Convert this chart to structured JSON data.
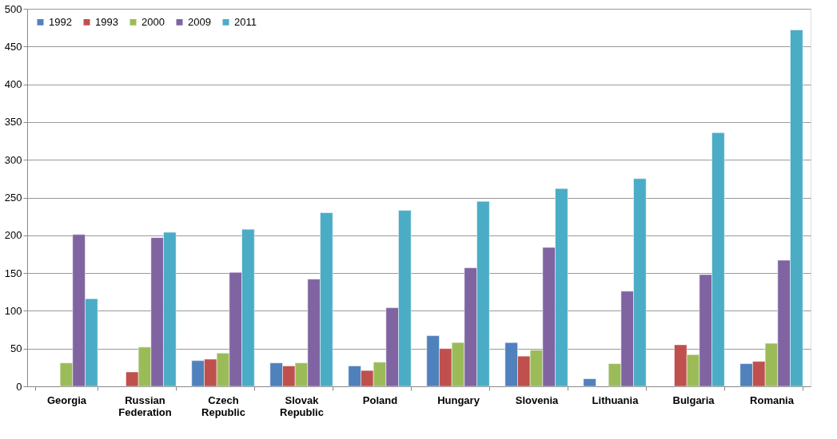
{
  "chart_data": {
    "type": "bar",
    "categories": [
      "Georgia",
      "Russian Federation",
      "Czech Republic",
      "Slovak Republic",
      "Poland",
      "Hungary",
      "Slovenia",
      "Lithuania",
      "Bulgaria",
      "Romania"
    ],
    "series": [
      {
        "name": "1992",
        "color": "#4f81bd",
        "values": [
          null,
          null,
          34,
          31,
          27,
          67,
          58,
          10,
          null,
          30
        ]
      },
      {
        "name": "1993",
        "color": "#c0504d",
        "values": [
          null,
          19,
          36,
          27,
          21,
          50,
          40,
          null,
          55,
          33
        ]
      },
      {
        "name": "2000",
        "color": "#9bbb59",
        "values": [
          31,
          52,
          44,
          31,
          32,
          58,
          48,
          30,
          42,
          57
        ]
      },
      {
        "name": "2009",
        "color": "#8064a2",
        "values": [
          201,
          197,
          151,
          142,
          104,
          157,
          184,
          126,
          148,
          167
        ]
      },
      {
        "name": "2011",
        "color": "#4bacc6",
        "values": [
          116,
          204,
          208,
          230,
          233,
          245,
          262,
          275,
          336,
          472
        ]
      }
    ],
    "ylim": [
      0,
      500
    ],
    "yticks": [
      0,
      50,
      100,
      150,
      200,
      250,
      300,
      350,
      400,
      450,
      500
    ],
    "grid": "y",
    "legend": "top left"
  }
}
